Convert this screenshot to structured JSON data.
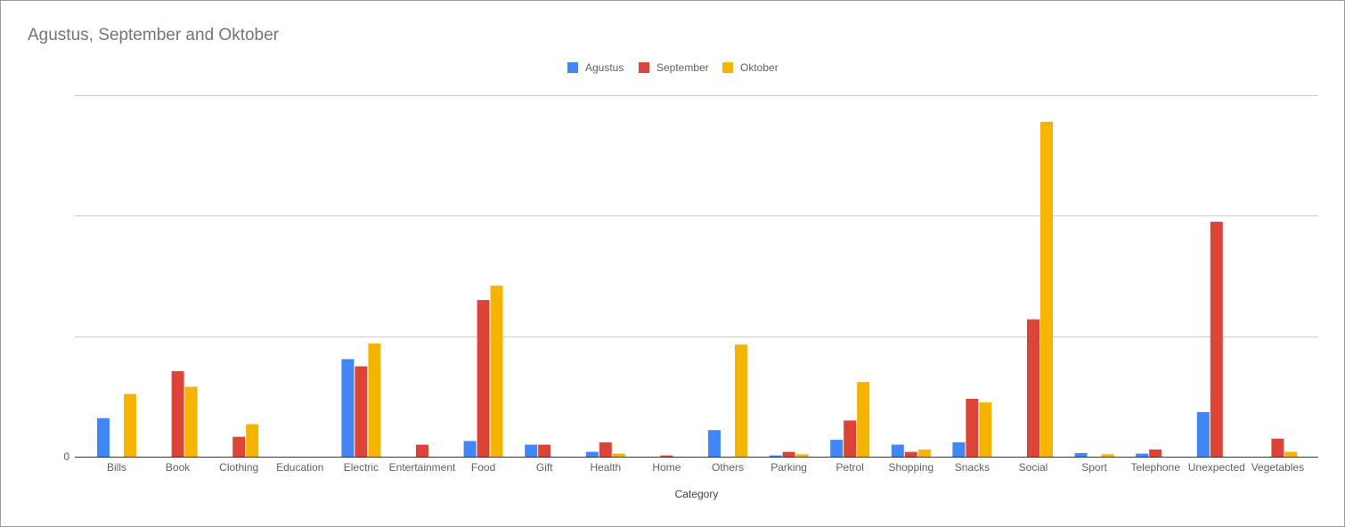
{
  "chart_data": {
    "type": "bar",
    "title": "Agustus, September and Oktober",
    "xlabel": "Category",
    "ylabel": "",
    "ylim": [
      0,
      300000
    ],
    "yticks": [
      "0",
      "",
      "",
      ""
    ],
    "gridlines": true,
    "legend_position": "top",
    "categories": [
      "Bills",
      "Book",
      "Clothing",
      "Education",
      "Electric",
      "Entertainment",
      "Food",
      "Gift",
      "Health",
      "Home",
      "Others",
      "Parking",
      "Petrol",
      "Shopping",
      "Snacks",
      "Social",
      "Sport",
      "Telephone",
      "Unexpected",
      "Vegetables"
    ],
    "series": [
      {
        "name": "Agustus",
        "color": "#4285f4",
        "values": [
          32000,
          0,
          0,
          0,
          81000,
          0,
          13000,
          10000,
          4000,
          0,
          22000,
          1000,
          14000,
          10000,
          12000,
          0,
          3000,
          2500,
          37000,
          0
        ]
      },
      {
        "name": "September",
        "color": "#db4437",
        "values": [
          0,
          71000,
          16500,
          0,
          75000,
          10000,
          130000,
          10000,
          12000,
          1000,
          0,
          4000,
          30000,
          4000,
          48000,
          114000,
          0,
          6000,
          195000,
          15000
        ]
      },
      {
        "name": "Oktober",
        "color": "#f4b400",
        "values": [
          52000,
          58000,
          27000,
          0,
          94000,
          0,
          142000,
          0,
          2500,
          0,
          93000,
          2000,
          62000,
          6000,
          45000,
          278000,
          2000,
          0,
          0,
          4000
        ]
      }
    ]
  }
}
